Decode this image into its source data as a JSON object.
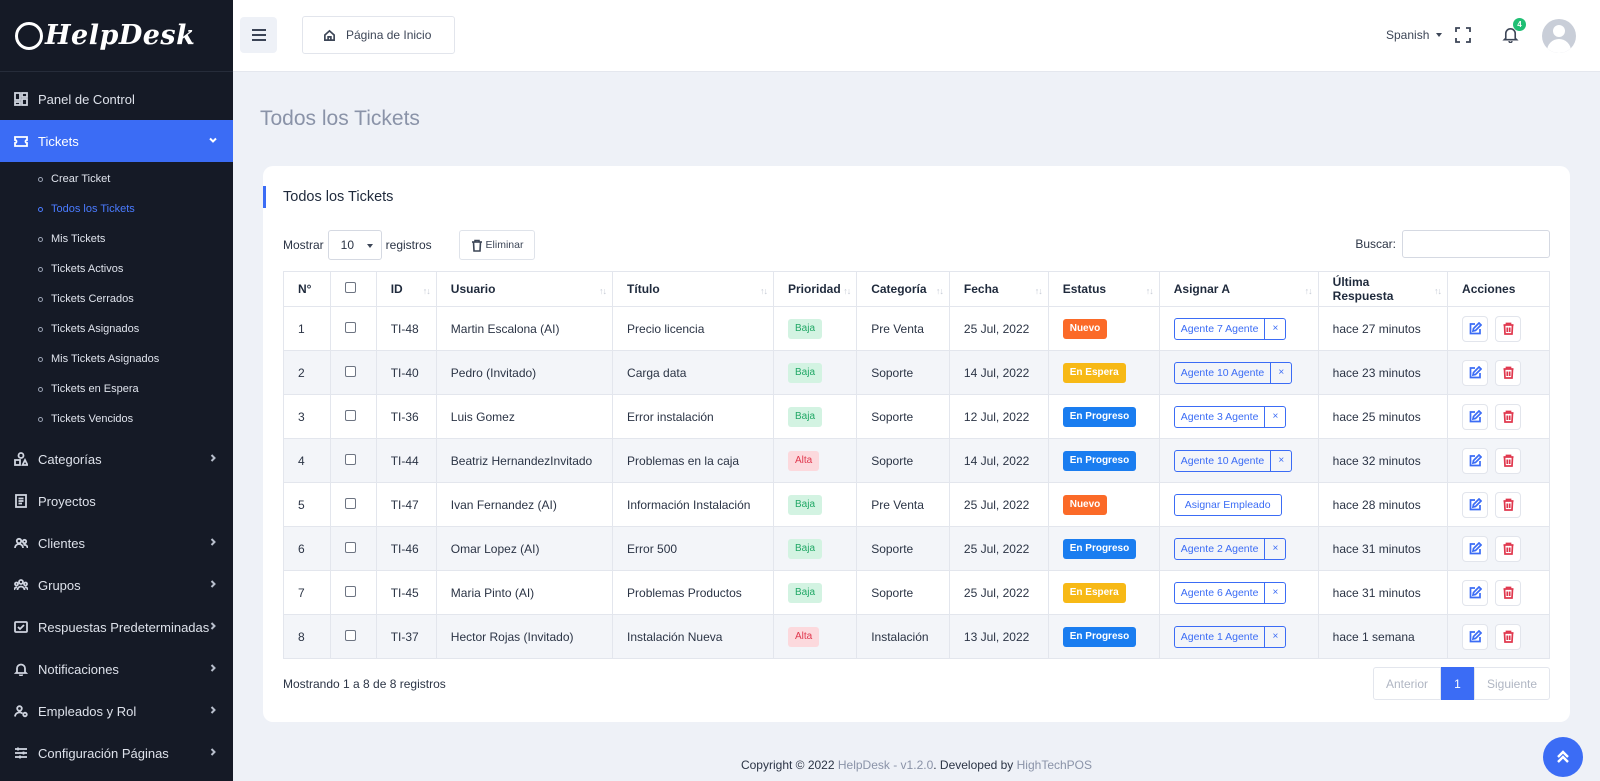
{
  "app": {
    "logo_text": "HelpDesk"
  },
  "sidebar": {
    "items": [
      {
        "label": "Panel de Control",
        "icon": "dashboard-icon",
        "chevron": false
      },
      {
        "label": "Tickets",
        "icon": "ticket-icon",
        "chevron": true,
        "active": true
      },
      {
        "label": "Categorías",
        "icon": "shapes-icon",
        "chevron": true
      },
      {
        "label": "Proyectos",
        "icon": "document-icon",
        "chevron": false
      },
      {
        "label": "Clientes",
        "icon": "users-icon",
        "chevron": true
      },
      {
        "label": "Grupos",
        "icon": "group-icon",
        "chevron": true
      },
      {
        "label": "Respuestas Predeterminadas",
        "icon": "mail-check-icon",
        "chevron": true
      },
      {
        "label": "Notificaciones",
        "icon": "bell-icon",
        "chevron": true
      },
      {
        "label": "Empleados y Rol",
        "icon": "user-gear-icon",
        "chevron": true
      },
      {
        "label": "Configuración Páginas",
        "icon": "sliders-icon",
        "chevron": true
      }
    ],
    "tickets_submenu": [
      "Crear Ticket",
      "Todos los Tickets",
      "Mis Tickets",
      "Tickets Activos",
      "Tickets Cerrados",
      "Tickets Asignados",
      "Mis Tickets Asignados",
      "Tickets en Espera",
      "Tickets Vencidos"
    ]
  },
  "topbar": {
    "home_label": "Página de Inicio",
    "language": "Spanish",
    "notification_count": "4"
  },
  "main": {
    "page_title": "Todos los Tickets",
    "card_title": "Todos los Tickets",
    "show_label": "Mostrar",
    "page_size": "10",
    "records_label": "registros",
    "delete_label": "Eliminar",
    "search_label": "Buscar:",
    "search_value": "",
    "columns": [
      "N°",
      "",
      "ID",
      "Usuario",
      "Título",
      "Prioridad",
      "Categoría",
      "Fecha",
      "Estatus",
      "Asignar A",
      "Última Respuesta",
      "Acciones"
    ],
    "rows": [
      {
        "n": "1",
        "id": "TI-48",
        "user": "Martin Escalona (AI)",
        "title": "Precio licencia",
        "priority": "Baja",
        "priority_level": "low",
        "category": "Pre Venta",
        "date": "25 Jul, 2022",
        "status": "Nuevo",
        "status_type": "new",
        "agent": "Agente 7 Agente",
        "last_reply": "hace 27 minutos"
      },
      {
        "n": "2",
        "id": "TI-40",
        "user": "Pedro (Invitado)",
        "title": "Carga data",
        "priority": "Baja",
        "priority_level": "low",
        "category": "Soporte",
        "date": "14 Jul, 2022",
        "status": "En Espera",
        "status_type": "wait",
        "agent": "Agente 10 Agente",
        "last_reply": "hace 23 minutos"
      },
      {
        "n": "3",
        "id": "TI-36",
        "user": "Luis Gomez",
        "title": "Error instalación",
        "priority": "Baja",
        "priority_level": "low",
        "category": "Soporte",
        "date": "12 Jul, 2022",
        "status": "En Progreso",
        "status_type": "prog",
        "agent": "Agente 3 Agente",
        "last_reply": "hace 25 minutos"
      },
      {
        "n": "4",
        "id": "TI-44",
        "user": "Beatriz HernandezInvitado",
        "title": "Problemas en la caja",
        "priority": "Alta",
        "priority_level": "high",
        "category": "Soporte",
        "date": "14 Jul, 2022",
        "status": "En Progreso",
        "status_type": "prog",
        "agent": "Agente 10 Agente",
        "last_reply": "hace 32 minutos"
      },
      {
        "n": "5",
        "id": "TI-47",
        "user": "Ivan Fernandez (AI)",
        "title": "Información Instalación",
        "priority": "Baja",
        "priority_level": "low",
        "category": "Pre Venta",
        "date": "25 Jul, 2022",
        "status": "Nuevo",
        "status_type": "new",
        "agent": "",
        "assign_label": "Asignar Empleado",
        "last_reply": "hace 28 minutos"
      },
      {
        "n": "6",
        "id": "TI-46",
        "user": "Omar Lopez (AI)",
        "title": "Error 500",
        "priority": "Baja",
        "priority_level": "low",
        "category": "Soporte",
        "date": "25 Jul, 2022",
        "status": "En Progreso",
        "status_type": "prog",
        "agent": "Agente 2 Agente",
        "last_reply": "hace 31 minutos"
      },
      {
        "n": "7",
        "id": "TI-45",
        "user": "Maria Pinto (AI)",
        "title": "Problemas Productos",
        "priority": "Baja",
        "priority_level": "low",
        "category": "Soporte",
        "date": "25 Jul, 2022",
        "status": "En Espera",
        "status_type": "wait",
        "agent": "Agente 6 Agente",
        "last_reply": "hace 31 minutos"
      },
      {
        "n": "8",
        "id": "TI-37",
        "user": "Hector Rojas (Invitado)",
        "title": "Instalación Nueva",
        "priority": "Alta",
        "priority_level": "high",
        "category": "Instalación",
        "date": "13 Jul, 2022",
        "status": "En Progreso",
        "status_type": "prog",
        "agent": "Agente 1 Agente",
        "last_reply": "hace 1 semana"
      }
    ],
    "info_text": "Mostrando 1 a 8 de 8 registros",
    "pagination": {
      "prev": "Anterior",
      "current": "1",
      "next": "Siguiente"
    }
  },
  "footer": {
    "prefix": "Copyright © 2022 ",
    "product": "HelpDesk - v1.2.0",
    "middle": ". Developed by ",
    "company": "HighTechPOS"
  },
  "colors": {
    "accent": "#3b6cf5",
    "sidebar_bg": "#151a26",
    "new": "#fb6a28",
    "wait": "#f7b916",
    "progress": "#1a7df0"
  }
}
